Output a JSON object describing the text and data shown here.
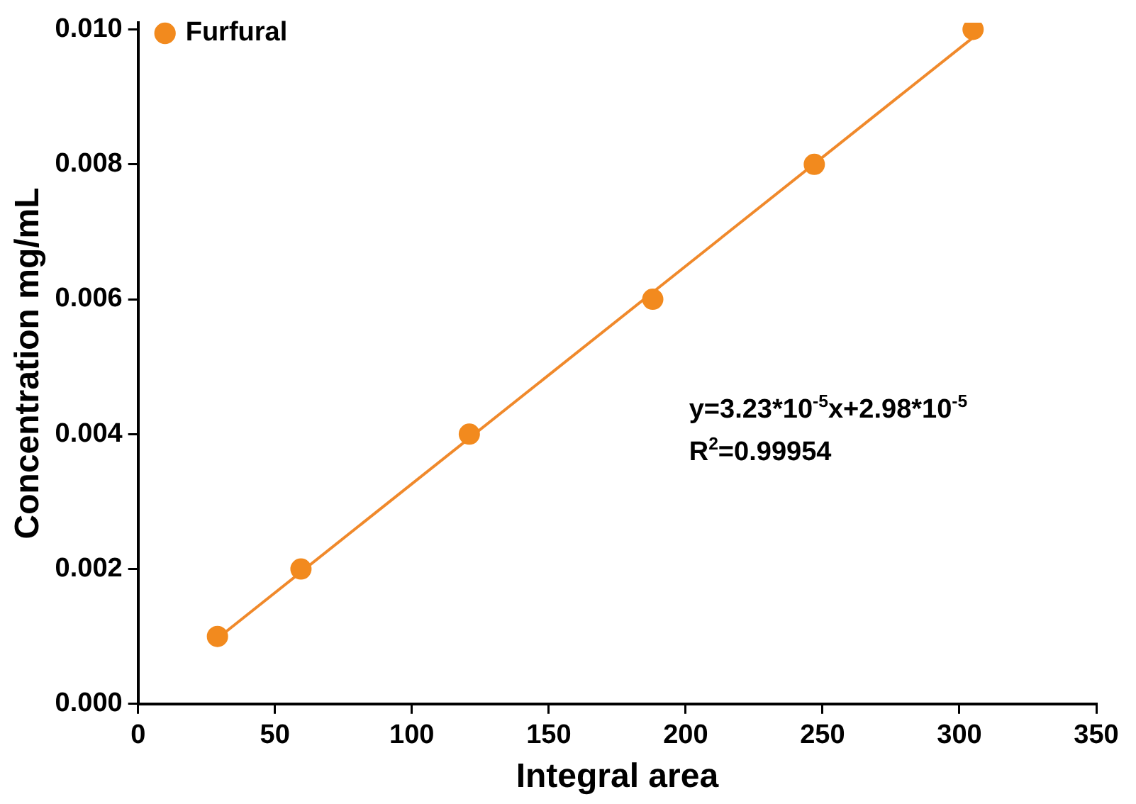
{
  "chart_data": {
    "type": "scatter",
    "xlabel": "Integral area",
    "ylabel": "Concentration mg/mL",
    "xlim": [
      0,
      350
    ],
    "xticks": [
      0,
      50,
      100,
      150,
      200,
      250,
      300,
      350
    ],
    "ylim": [
      0,
      0.0101
    ],
    "yticks": [
      {
        "value": 0,
        "label": "0.000"
      },
      {
        "value": 0.002,
        "label": "0.002"
      },
      {
        "value": 0.004,
        "label": "0.004"
      },
      {
        "value": 0.006,
        "label": "0.006"
      },
      {
        "value": 0.008,
        "label": "0.008"
      },
      {
        "value": 0.01,
        "label": "0.010"
      }
    ],
    "grid": false,
    "legend": "top left",
    "marker": "circle",
    "series": [
      {
        "name": "Furfural",
        "color": "#f28a1e",
        "x": [
          29,
          59.5,
          121,
          188,
          247,
          305
        ],
        "values": [
          0.001,
          0.002,
          0.004,
          0.006,
          0.008,
          0.01
        ]
      },
      {
        "type": "line",
        "color": "#f0892b",
        "line_style": "solid",
        "marker": "none",
        "x": [
          29,
          305
        ],
        "values": [
          0.00097,
          0.00988
        ]
      }
    ],
    "annotations": [
      "y=3.23*10$^{-5}$x+2.98*10$^{-5}$",
      "R$^{2}$=0.99954"
    ]
  }
}
